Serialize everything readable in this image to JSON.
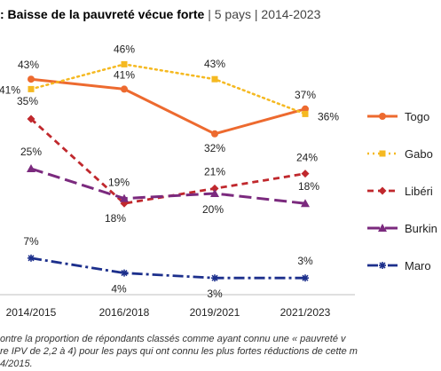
{
  "title": {
    "bold": ": Baisse de la pauvreté vécue forte",
    "rest": " | 5 pays | 2014-2023"
  },
  "note": {
    "line1": "ontre la proportion de répondants classés comme ayant connu une « pauvreté v",
    "line2": "re IPV de 2,2 à 4) pour les pays qui ont connu les plus fortes réductions de cette m",
    "line3": "4/2015."
  },
  "chart_data": {
    "type": "line",
    "categories": [
      "2014/2015",
      "2016/2018",
      "2019/2021",
      "2021/2023"
    ],
    "ylim": [
      0,
      50
    ],
    "grid": false,
    "legend_position": "right",
    "series": [
      {
        "name": "Togo",
        "values": [
          43,
          41,
          32,
          37
        ],
        "color": "#ED6A2F",
        "dash": "solid",
        "marker": "circle",
        "labels": [
          "43%",
          "41%",
          "32%",
          "37%"
        ]
      },
      {
        "name": "Gabo",
        "values": [
          41,
          46,
          43,
          36
        ],
        "color": "#F5B921",
        "dash": "dotted",
        "marker": "square",
        "labels": [
          "41%",
          "46%",
          "43%",
          "36%"
        ]
      },
      {
        "name": "Libéri",
        "values": [
          35,
          18,
          21,
          24
        ],
        "color": "#C0282D",
        "dash": "dashed",
        "marker": "diamond",
        "labels": [
          "35%",
          "18%",
          "21%",
          "24%"
        ]
      },
      {
        "name": "Burkin",
        "values": [
          25,
          19,
          20,
          18
        ],
        "color": "#7B2A7E",
        "dash": "longdash",
        "marker": "triangle",
        "labels": [
          "25%",
          "19%",
          "20%",
          "18%"
        ]
      },
      {
        "name": "Maro",
        "values": [
          7,
          4,
          3,
          3
        ],
        "color": "#1C2F8C",
        "dash": "dashdot",
        "marker": "star",
        "labels": [
          "7%",
          "4%",
          "3%",
          "3%"
        ]
      }
    ]
  }
}
